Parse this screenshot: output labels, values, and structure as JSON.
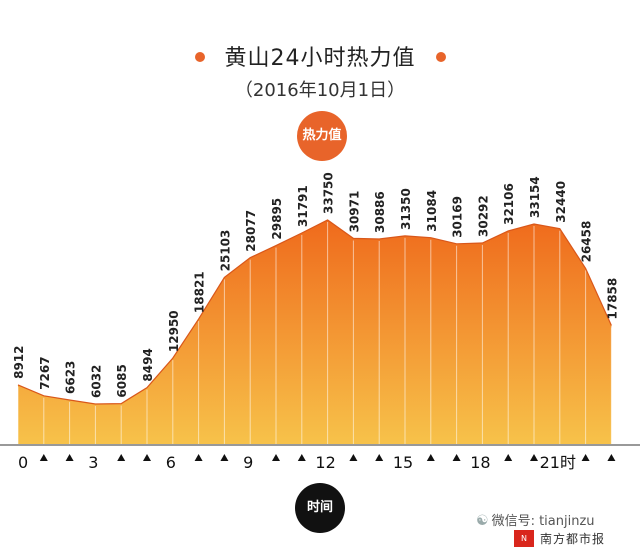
{
  "header": {
    "title": "黄山24小时热力值",
    "subtitle": "（2016年10月1日）"
  },
  "badges": {
    "heat": "热力值",
    "time": "时间"
  },
  "watermark": {
    "wechat": "微信号: tianjinzu",
    "paper": "南方都市报",
    "logo": "N"
  },
  "colors": {
    "accent": "#e8642a",
    "area_top": "#ef6a1c",
    "area_bottom": "#f7c24a",
    "time_badge": "#111111"
  },
  "chart_data": {
    "type": "area",
    "title": "黄山24小时热力值",
    "subtitle": "（2016年10月1日）",
    "xlabel": "时间",
    "ylabel": "热力值",
    "x": [
      0,
      1,
      2,
      3,
      4,
      5,
      6,
      7,
      8,
      9,
      10,
      11,
      12,
      13,
      14,
      15,
      16,
      17,
      18,
      19,
      20,
      21,
      22,
      23
    ],
    "values": [
      8912,
      7267,
      6623,
      6032,
      6085,
      8494,
      12950,
      18821,
      25103,
      28077,
      29895,
      31791,
      33750,
      30971,
      30886,
      31350,
      31084,
      30169,
      30292,
      32106,
      33154,
      32440,
      26458,
      17858
    ],
    "x_tick_labels": [
      "0",
      "3",
      "6",
      "9",
      "12",
      "15",
      "18",
      "21时"
    ],
    "x_tick_positions": [
      0,
      3,
      6,
      9,
      12,
      15,
      18,
      21
    ],
    "ylim": [
      0,
      36000
    ],
    "grid": false,
    "legend": "none"
  }
}
